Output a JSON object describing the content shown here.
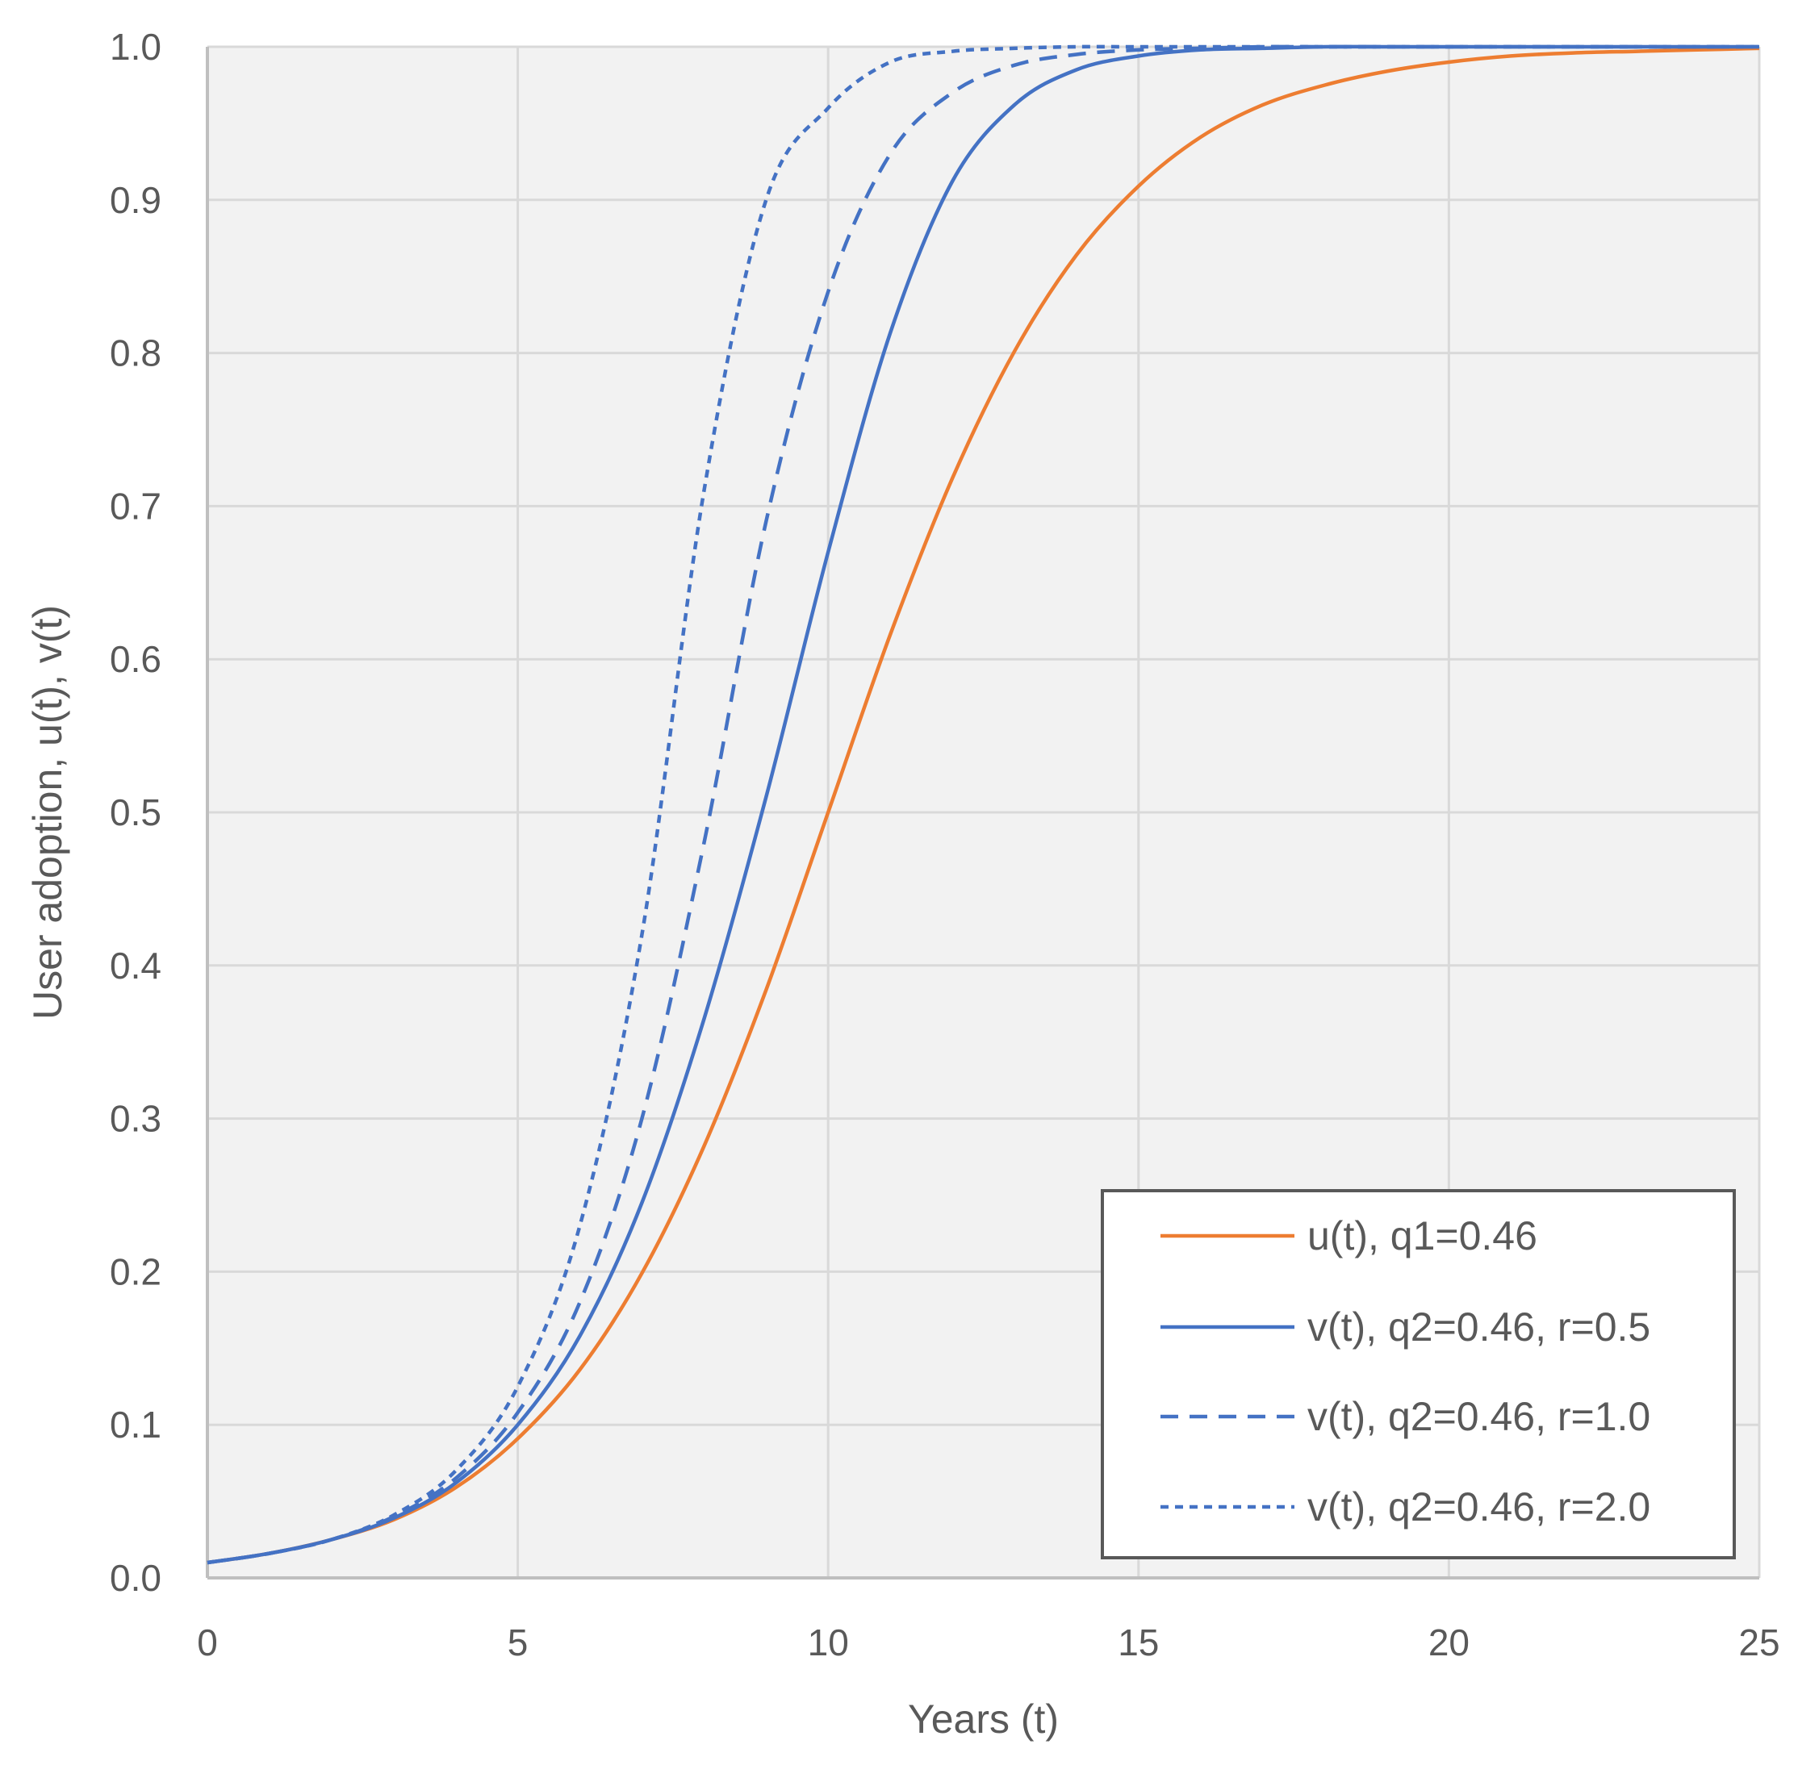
{
  "chart_data": {
    "type": "line",
    "title": "",
    "xlabel": "Years (t)",
    "ylabel": "User adoption, u(t), v(t)",
    "xlim": [
      0,
      25
    ],
    "ylim": [
      0.0,
      1.0
    ],
    "x_ticks": [
      0,
      5,
      10,
      15,
      20,
      25
    ],
    "x_tick_labels": [
      "0",
      "5",
      "10",
      "15",
      "20",
      "25"
    ],
    "y_ticks": [
      0.0,
      0.1,
      0.2,
      0.3,
      0.4,
      0.5,
      0.6,
      0.7,
      0.8,
      0.9,
      1.0
    ],
    "y_tick_labels": [
      "0.0",
      "0.1",
      "0.2",
      "0.3",
      "0.4",
      "0.5",
      "0.6",
      "0.7",
      "0.8",
      "0.9",
      "1.0"
    ],
    "grid": true,
    "legend_position": "bottom-right",
    "x": [
      0,
      1,
      2,
      3,
      4,
      5,
      6,
      7,
      8,
      9,
      10,
      11,
      12,
      13,
      14,
      15,
      16,
      17,
      18,
      19,
      20,
      21,
      22,
      23,
      24,
      25
    ],
    "series": [
      {
        "name": "u(t), q1=0.46",
        "color": "#ED7D31",
        "style": "solid",
        "values": [
          0.01,
          0.016,
          0.025,
          0.038,
          0.059,
          0.091,
          0.136,
          0.199,
          0.282,
          0.384,
          0.5,
          0.616,
          0.718,
          0.801,
          0.864,
          0.909,
          0.941,
          0.962,
          0.975,
          0.984,
          0.99,
          0.994,
          0.996,
          0.997,
          0.998,
          0.999
        ]
      },
      {
        "name": "v(t), q2=0.46, r=0.5",
        "color": "#4472C4",
        "style": "solid",
        "values": [
          0.01,
          0.016,
          0.025,
          0.039,
          0.062,
          0.1,
          0.158,
          0.245,
          0.365,
          0.51,
          0.67,
          0.813,
          0.912,
          0.962,
          0.985,
          0.994,
          0.998,
          0.999,
          1.0,
          1.0,
          1.0,
          1.0,
          1.0,
          1.0,
          1.0,
          1.0
        ]
      },
      {
        "name": "v(t), q2=0.46, r=1.0",
        "color": "#4472C4",
        "style": "dashed",
        "values": [
          0.01,
          0.016,
          0.025,
          0.04,
          0.065,
          0.108,
          0.18,
          0.3,
          0.48,
          0.69,
          0.84,
          0.93,
          0.97,
          0.988,
          0.995,
          0.998,
          0.999,
          1.0,
          1.0,
          1.0,
          1.0,
          1.0,
          1.0,
          1.0,
          1.0,
          1.0
        ]
      },
      {
        "name": "v(t), q2=0.46, r=2.0",
        "color": "#4472C4",
        "style": "dotted",
        "values": [
          0.01,
          0.016,
          0.025,
          0.041,
          0.07,
          0.125,
          0.23,
          0.42,
          0.71,
          0.9,
          0.96,
          0.99,
          0.997,
          0.999,
          1.0,
          1.0,
          1.0,
          1.0,
          1.0,
          1.0,
          1.0,
          1.0,
          1.0,
          1.0,
          1.0,
          1.0
        ]
      }
    ]
  }
}
